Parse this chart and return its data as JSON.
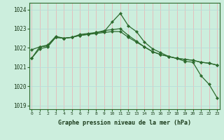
{
  "hours": [
    0,
    1,
    2,
    3,
    4,
    5,
    6,
    7,
    8,
    9,
    10,
    11,
    12,
    13,
    14,
    15,
    16,
    17,
    18,
    19,
    20,
    21,
    22,
    23
  ],
  "line1": [
    1021.45,
    1021.95,
    1022.05,
    1022.55,
    1022.5,
    1022.55,
    1022.65,
    1022.7,
    1022.8,
    1022.85,
    1023.35,
    1023.8,
    1023.15,
    1022.85,
    1022.3,
    1021.95,
    1021.75,
    1021.55,
    1021.45,
    1021.3,
    1021.25,
    1020.55,
    1020.1,
    1019.4
  ],
  "line2": [
    1021.9,
    1022.05,
    1022.15,
    1022.6,
    1022.5,
    1022.55,
    1022.7,
    1022.75,
    1022.8,
    1022.9,
    1022.95,
    1023.0,
    1022.65,
    1022.35,
    1022.05,
    1021.8,
    1021.65,
    1021.55,
    1021.45,
    1021.4,
    1021.35,
    1021.25,
    1021.2,
    1021.1
  ],
  "line3": [
    1021.45,
    1022.05,
    1022.1,
    1022.55,
    1022.5,
    1022.55,
    1022.65,
    1022.7,
    1022.75,
    1022.8,
    1022.85,
    1022.85,
    1022.55,
    1022.3,
    1022.05,
    1021.8,
    1021.65,
    1021.55,
    1021.45,
    1021.4,
    1021.35,
    1021.25,
    1021.2,
    1021.1
  ],
  "line_color": "#2d6a2d",
  "bg_color": "#cceedd",
  "grid_color_v": "#e8b8b8",
  "grid_color_h": "#b8ddd8",
  "xlabel": "Graphe pression niveau de la mer (hPa)",
  "ylim": [
    1018.8,
    1024.35
  ],
  "yticks": [
    1019,
    1020,
    1021,
    1022,
    1023,
    1024
  ],
  "xticks": [
    0,
    1,
    2,
    3,
    4,
    5,
    6,
    7,
    8,
    9,
    10,
    11,
    12,
    13,
    14,
    15,
    16,
    17,
    18,
    19,
    20,
    21,
    22,
    23
  ]
}
